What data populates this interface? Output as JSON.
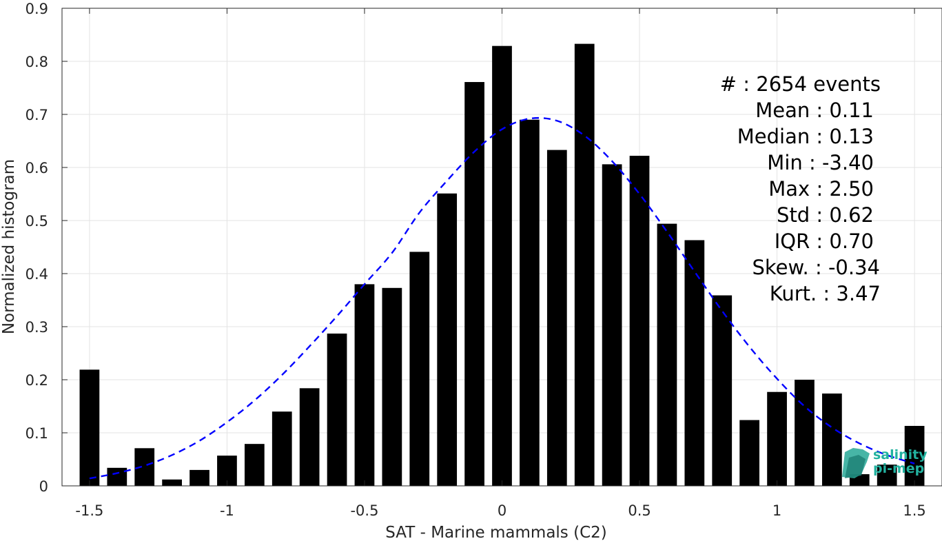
{
  "chart_data": {
    "type": "bar",
    "xlabel": "SAT - Marine mammals (C2)",
    "ylabel": "Normalized histogram",
    "xlim": [
      -1.6,
      1.6
    ],
    "ylim": [
      0,
      0.9
    ],
    "xticks": [
      -1.5,
      -1,
      -0.5,
      0,
      0.5,
      1,
      1.5
    ],
    "xtick_labels": [
      "-1.5",
      "-1",
      "-0.5",
      "0",
      "0.5",
      "1",
      "1.5"
    ],
    "yticks": [
      0,
      0.1,
      0.2,
      0.3,
      0.4,
      0.5,
      0.6,
      0.7,
      0.8,
      0.9
    ],
    "ytick_labels": [
      "0",
      "0.1",
      "0.2",
      "0.3",
      "0.4",
      "0.5",
      "0.6",
      "0.7",
      "0.8",
      "0.9"
    ],
    "grid": true,
    "bar_color": "#000000",
    "fit_color": "#0000ff",
    "x": [
      -1.5,
      -1.4,
      -1.3,
      -1.2,
      -1.1,
      -1.0,
      -0.9,
      -0.8,
      -0.7,
      -0.6,
      -0.5,
      -0.4,
      -0.3,
      -0.2,
      -0.1,
      0.0,
      0.1,
      0.2,
      0.3,
      0.4,
      0.5,
      0.6,
      0.7,
      0.8,
      0.9,
      1.0,
      1.1,
      1.2,
      1.3,
      1.4,
      1.5
    ],
    "values": [
      0.219,
      0.034,
      0.071,
      0.012,
      0.03,
      0.057,
      0.079,
      0.14,
      0.184,
      0.287,
      0.38,
      0.373,
      0.441,
      0.551,
      0.761,
      0.829,
      0.69,
      0.633,
      0.833,
      0.606,
      0.622,
      0.494,
      0.463,
      0.359,
      0.124,
      0.177,
      0.2,
      0.174,
      0.022,
      0.04,
      0.113
    ],
    "fit": {
      "style": "dashed",
      "x": [
        -1.5,
        -1.4,
        -1.3,
        -1.2,
        -1.1,
        -1.0,
        -0.9,
        -0.8,
        -0.7,
        -0.6,
        -0.5,
        -0.4,
        -0.3,
        -0.2,
        -0.1,
        0.0,
        0.1,
        0.2,
        0.3,
        0.4,
        0.5,
        0.6,
        0.7,
        0.8,
        0.9,
        1.0,
        1.1,
        1.2,
        1.3,
        1.4,
        1.5
      ],
      "y": [
        0.014,
        0.024,
        0.038,
        0.058,
        0.085,
        0.12,
        0.161,
        0.209,
        0.263,
        0.32,
        0.38,
        0.439,
        0.515,
        0.575,
        0.63,
        0.672,
        0.692,
        0.688,
        0.66,
        0.612,
        0.55,
        0.479,
        0.404,
        0.33,
        0.262,
        0.202,
        0.15,
        0.11,
        0.08,
        0.058,
        0.042
      ]
    },
    "stats": [
      {
        "label": "#  : 2654 events"
      },
      {
        "label": "Mean : 0.11"
      },
      {
        "label": "Median : 0.13"
      },
      {
        "label": "Min : -3.40"
      },
      {
        "label": "Max : 2.50"
      },
      {
        "label": "Std : 0.62"
      },
      {
        "label": "IQR : 0.70"
      },
      {
        "label": "Skew. : -0.34"
      },
      {
        "label": "Kurt. : 3.47"
      }
    ],
    "logo": {
      "line1": "salinity",
      "line2": "pi-mep"
    }
  }
}
